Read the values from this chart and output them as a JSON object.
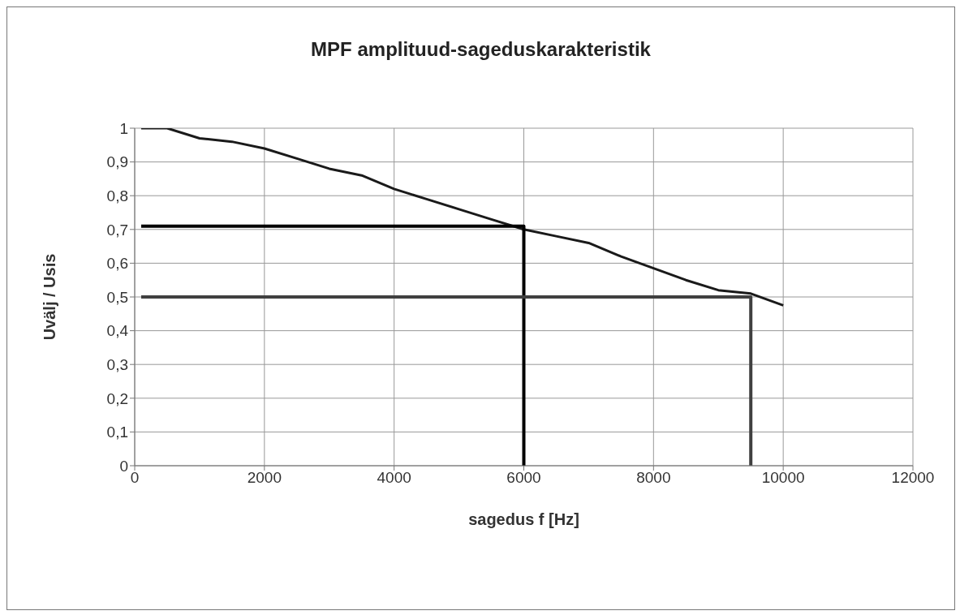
{
  "chart_data": {
    "type": "line",
    "title": "MPF amplituud-sageduskarakteristik",
    "xlabel": "sagedus f [Hz]",
    "ylabel": "Uvälj / Usis",
    "xlim": [
      0,
      12000
    ],
    "xticks": [
      0,
      2000,
      4000,
      6000,
      8000,
      10000,
      12000
    ],
    "ylim": [
      0,
      1
    ],
    "yticks": [
      0,
      {
        "value": 0.1,
        "label": "0,1"
      },
      {
        "value": 0.2,
        "label": "0,2"
      },
      {
        "value": 0.3,
        "label": "0,3"
      },
      {
        "value": 0.4,
        "label": "0,4"
      },
      {
        "value": 0.5,
        "label": "0,5"
      },
      {
        "value": 0.6,
        "label": "0,6"
      },
      {
        "value": 0.7,
        "label": "0,7"
      },
      {
        "value": 0.8,
        "label": "0,8"
      },
      {
        "value": 0.9,
        "label": "0,9"
      },
      1
    ],
    "grid": true,
    "legend": false,
    "marker": "none",
    "line_style": "solid",
    "series": [
      {
        "color": "#1a1a1a",
        "x": [
          100,
          500,
          1000,
          1500,
          2000,
          2500,
          3000,
          3500,
          4000,
          4500,
          5000,
          5500,
          6000,
          6500,
          7000,
          7500,
          8000,
          8500,
          9000,
          9500,
          10000
        ],
        "values": [
          1,
          1,
          0.97,
          0.96,
          0.94,
          0.91,
          0.88,
          0.86,
          0.82,
          0.79,
          0.76,
          0.73,
          0.7,
          0.68,
          0.66,
          0.62,
          0.585,
          0.55,
          0.52,
          0.51,
          0.475
        ]
      },
      {
        "color": "#000000",
        "x": [
          100,
          6000,
          6000
        ],
        "values": [
          0.71,
          0.71,
          0
        ]
      },
      {
        "color": "#404040",
        "x": [
          100,
          9500,
          9500
        ],
        "values": [
          0.5,
          0.5,
          0
        ]
      }
    ]
  }
}
